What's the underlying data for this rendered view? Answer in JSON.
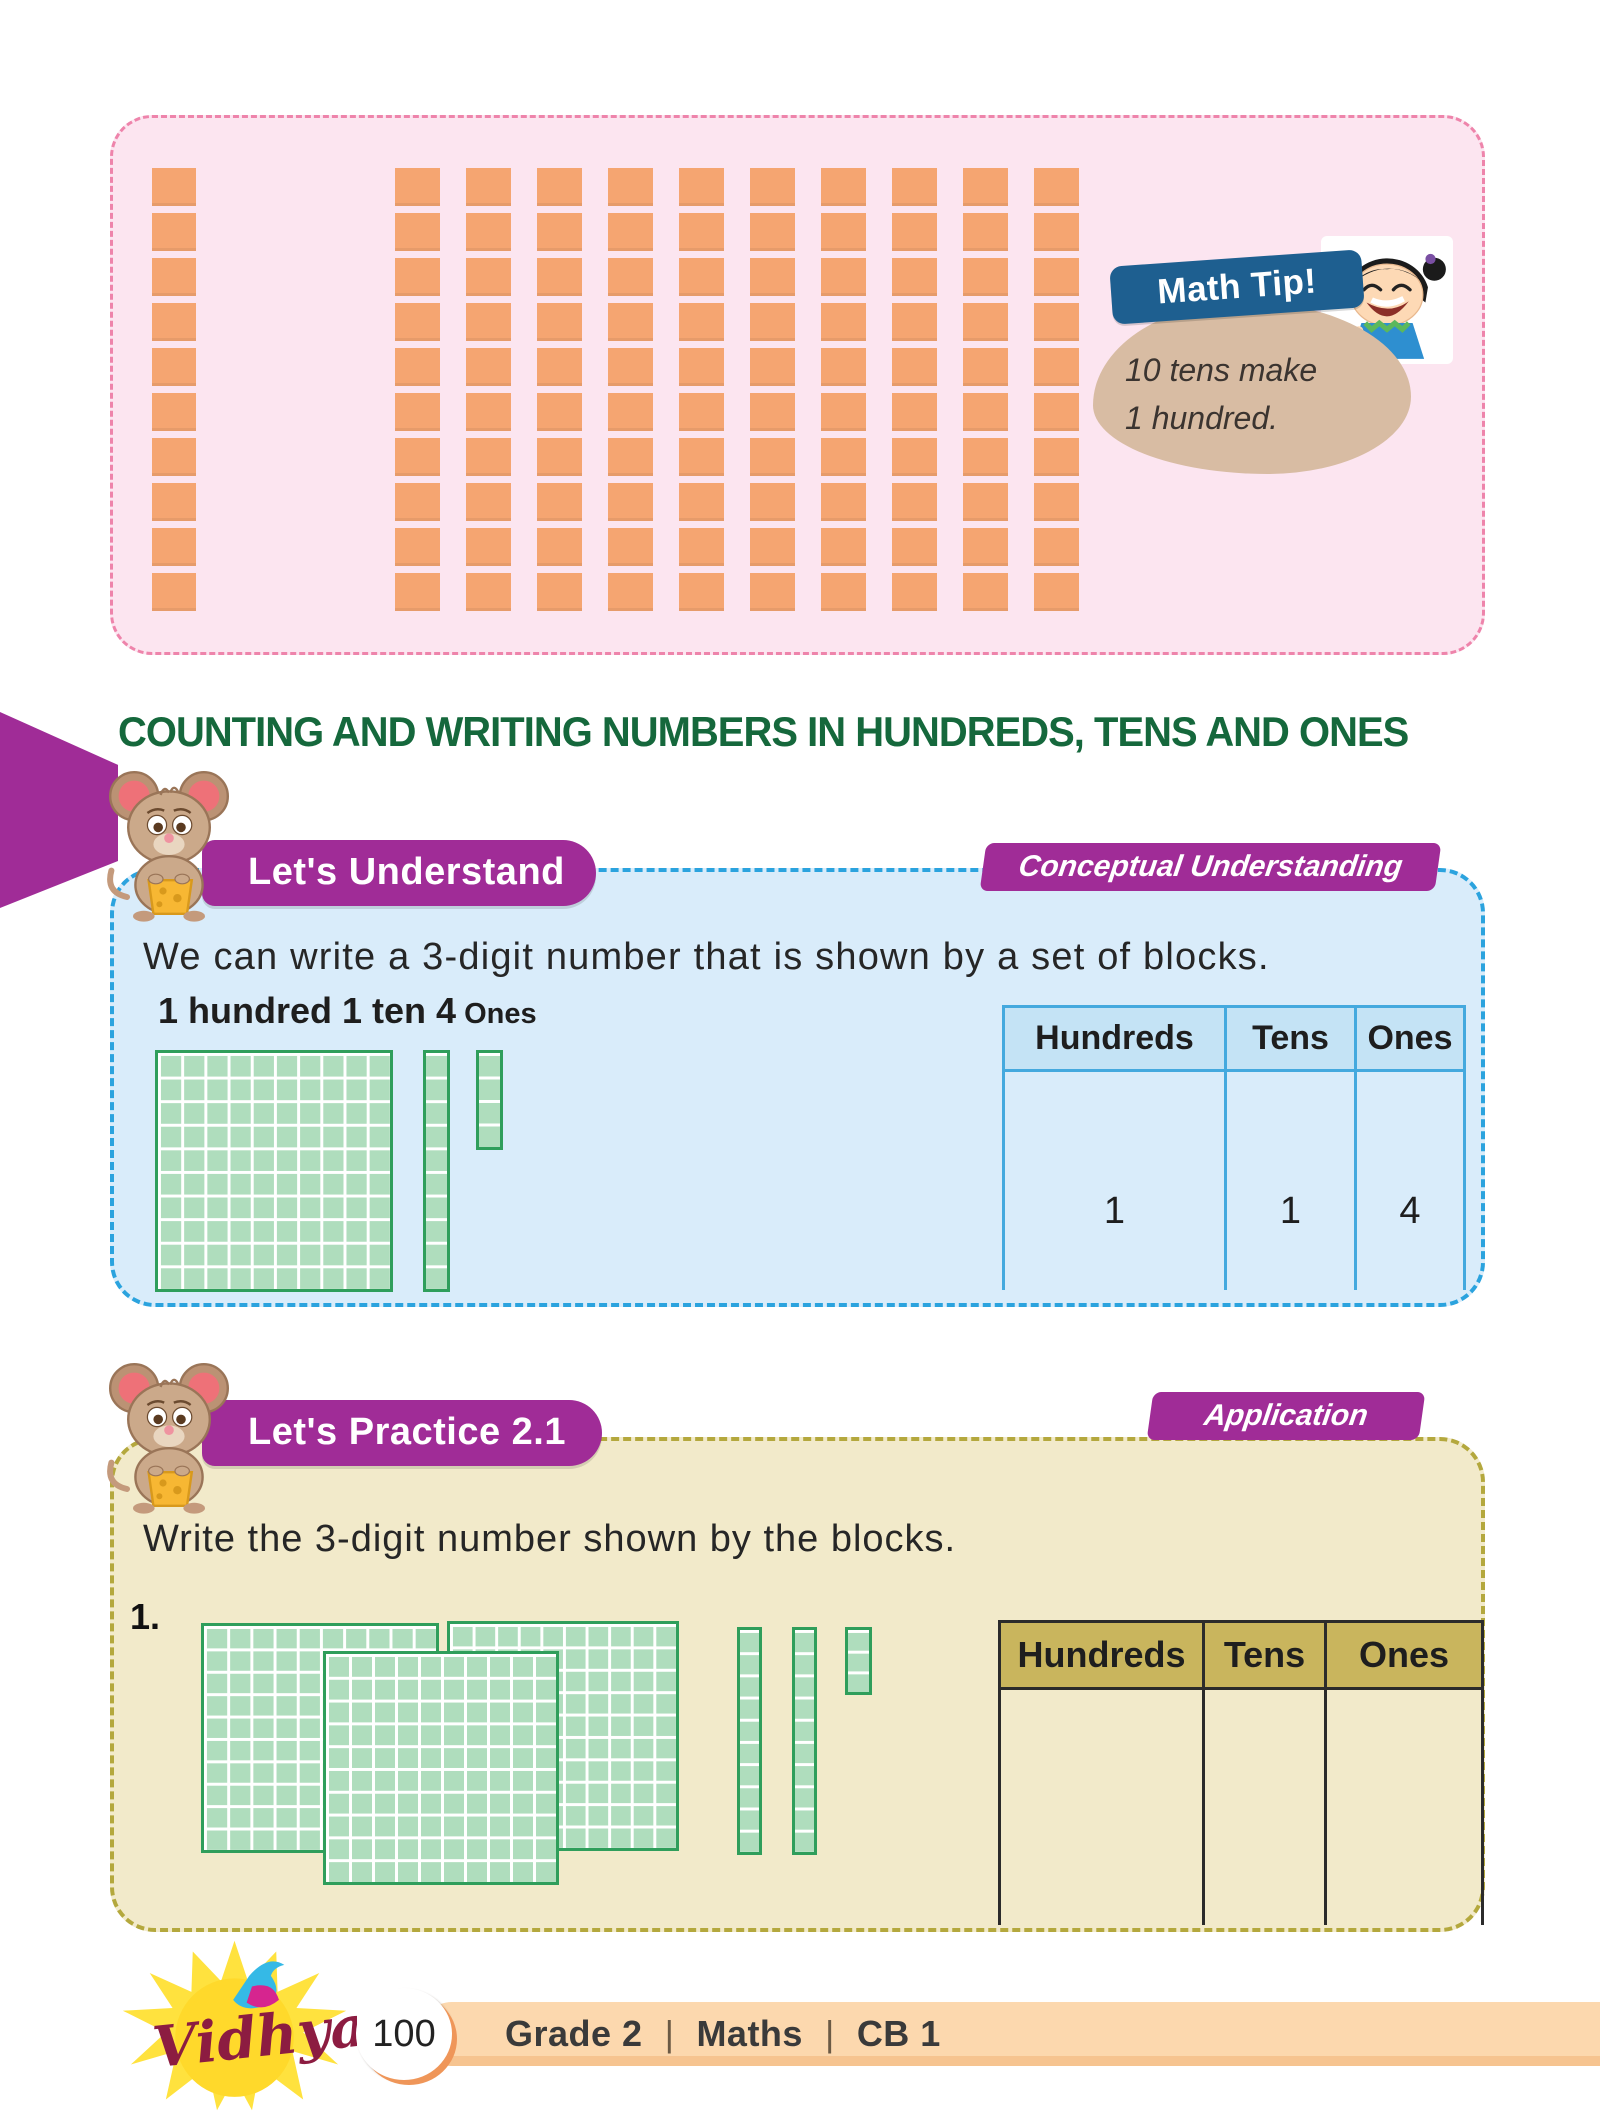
{
  "colors": {
    "pink_bg": "#fce5f0",
    "pink_border": "#ee84ab",
    "orange_block": "#f5a571",
    "tip_blob": "#d8bca3",
    "tip_ribbon": "#1e5f90",
    "heading_green": "#15683c",
    "purple": "#a02c97",
    "blue_bg": "#d9ecfa",
    "blue_border": "#2ba3de",
    "table_blue": "#44a9de",
    "table_blue_header": "#c4e3f5",
    "green_border": "#2f9e5b",
    "green_fill": "#afddbd",
    "beige_bg": "#f2eaca",
    "beige_border": "#b4a83d",
    "tan_header": "#c9b55d",
    "text_dark": "#2a2a2a",
    "footer_bar": "#fcd8ae",
    "footer_orange": "#ef9659",
    "logo_maroon": "#8c1c41"
  },
  "tens_panel": {
    "left_column_blocks": 10,
    "group_blocks": 100,
    "group_columns": 10,
    "math_tip": {
      "title": "Math Tip!",
      "line1": "10 tens make",
      "line2": "1 hundred."
    }
  },
  "heading": "COUNTING AND WRITING NUMBERS IN HUNDREDS, TENS AND ONES",
  "understand": {
    "banner": "Let's Understand",
    "badge": "Conceptual Understanding",
    "intro": "We can write a 3-digit number that is shown by a set of blocks.",
    "caption_main": "1 hundred 1 ten 4",
    "caption_suffix": "Ones",
    "blocks": {
      "hundreds": 1,
      "tens": 1,
      "ones": 4
    },
    "table": {
      "headers": [
        "Hundreds",
        "Tens",
        "Ones"
      ],
      "values": [
        "1",
        "1",
        "4"
      ]
    }
  },
  "practice": {
    "banner": "Let's Practice 2.1",
    "badge": "Application",
    "instruction": "Write the 3-digit number shown by the blocks.",
    "item_number": "1.",
    "blocks": {
      "hundreds": 3,
      "tens": 2,
      "ones": 3
    },
    "table": {
      "headers": [
        "Hundreds",
        "Tens",
        "Ones"
      ],
      "values": [
        "",
        "",
        ""
      ]
    }
  },
  "footer": {
    "page_number": "100",
    "breadcrumb": [
      "Grade 2",
      "Maths",
      "CB 1"
    ],
    "separator": "|",
    "logo_text": "Vidhya"
  }
}
